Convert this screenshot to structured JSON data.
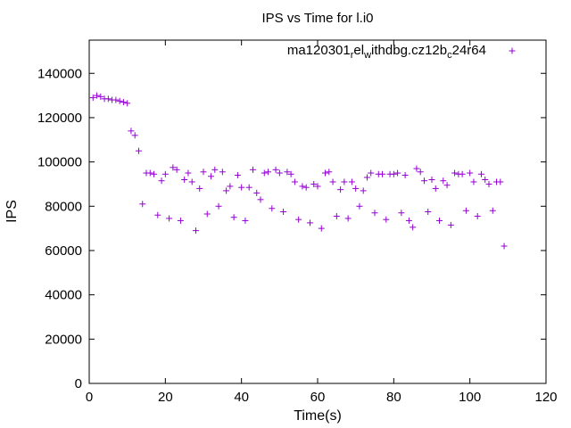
{
  "chart_data": {
    "type": "scatter",
    "title": "IPS vs Time for l.i0",
    "xlabel": "Time(s)",
    "ylabel": "IPS",
    "xlim": [
      0,
      120
    ],
    "ylim": [
      0,
      155000
    ],
    "x_ticks": [
      0,
      20,
      40,
      60,
      80,
      100,
      120
    ],
    "y_ticks": [
      0,
      20000,
      40000,
      60000,
      80000,
      100000,
      120000,
      140000
    ],
    "grid": false,
    "legend_position": "top-right",
    "marker": "plus",
    "color": "#9400d3",
    "legend": {
      "parts": [
        "ma120301",
        "r",
        "el",
        "w",
        "ithdbg.cz12b",
        "c",
        "24r64"
      ],
      "subscripts": [
        1,
        3,
        5
      ]
    },
    "series": [
      {
        "points": [
          [
            1,
            129000
          ],
          [
            2,
            130000
          ],
          [
            3,
            129500
          ],
          [
            4,
            128500
          ],
          [
            5,
            128500
          ],
          [
            6,
            128000
          ],
          [
            7,
            128000
          ],
          [
            8,
            127500
          ],
          [
            9,
            127000
          ],
          [
            10,
            126500
          ],
          [
            11,
            114000
          ],
          [
            12,
            112000
          ],
          [
            13,
            105000
          ],
          [
            14,
            81000
          ],
          [
            15,
            95000
          ],
          [
            16,
            95000
          ],
          [
            17,
            94500
          ],
          [
            18,
            76000
          ],
          [
            19,
            91500
          ],
          [
            20,
            94500
          ],
          [
            21,
            74500
          ],
          [
            22,
            97500
          ],
          [
            23,
            96500
          ],
          [
            24,
            73500
          ],
          [
            25,
            92000
          ],
          [
            26,
            95000
          ],
          [
            27,
            91000
          ],
          [
            28,
            69000
          ],
          [
            29,
            88000
          ],
          [
            30,
            95500
          ],
          [
            31,
            76500
          ],
          [
            32,
            93500
          ],
          [
            33,
            96500
          ],
          [
            34,
            80000
          ],
          [
            35,
            95500
          ],
          [
            36,
            87000
          ],
          [
            37,
            89000
          ],
          [
            38,
            75000
          ],
          [
            39,
            94000
          ],
          [
            40,
            88500
          ],
          [
            41,
            73500
          ],
          [
            42,
            88500
          ],
          [
            43,
            96500
          ],
          [
            44,
            86000
          ],
          [
            45,
            83000
          ],
          [
            46,
            95000
          ],
          [
            47,
            95500
          ],
          [
            48,
            79000
          ],
          [
            49,
            96500
          ],
          [
            50,
            95000
          ],
          [
            51,
            77500
          ],
          [
            52,
            95500
          ],
          [
            53,
            94500
          ],
          [
            54,
            91000
          ],
          [
            55,
            74000
          ],
          [
            56,
            89000
          ],
          [
            57,
            88500
          ],
          [
            58,
            72500
          ],
          [
            59,
            90000
          ],
          [
            60,
            89000
          ],
          [
            61,
            70000
          ],
          [
            62,
            95000
          ],
          [
            63,
            95500
          ],
          [
            64,
            91000
          ],
          [
            65,
            75500
          ],
          [
            66,
            87500
          ],
          [
            67,
            91000
          ],
          [
            68,
            74500
          ],
          [
            69,
            91000
          ],
          [
            70,
            88000
          ],
          [
            71,
            80000
          ],
          [
            72,
            87000
          ],
          [
            73,
            93000
          ],
          [
            74,
            95000
          ],
          [
            75,
            77000
          ],
          [
            76,
            94500
          ],
          [
            77,
            94500
          ],
          [
            78,
            74000
          ],
          [
            79,
            94500
          ],
          [
            80,
            94500
          ],
          [
            81,
            95000
          ],
          [
            82,
            77000
          ],
          [
            83,
            94000
          ],
          [
            84,
            73500
          ],
          [
            85,
            70500
          ],
          [
            86,
            97000
          ],
          [
            87,
            95500
          ],
          [
            88,
            91500
          ],
          [
            89,
            77500
          ],
          [
            90,
            92000
          ],
          [
            91,
            88000
          ],
          [
            92,
            73500
          ],
          [
            93,
            91500
          ],
          [
            94,
            89500
          ],
          [
            95,
            71500
          ],
          [
            96,
            95000
          ],
          [
            97,
            94500
          ],
          [
            98,
            94500
          ],
          [
            99,
            78000
          ],
          [
            100,
            95000
          ],
          [
            101,
            91000
          ],
          [
            102,
            75500
          ],
          [
            103,
            94500
          ],
          [
            104,
            92000
          ],
          [
            105,
            90000
          ],
          [
            106,
            78000
          ],
          [
            107,
            91000
          ],
          [
            108,
            91000
          ],
          [
            109,
            62000
          ]
        ]
      }
    ]
  }
}
